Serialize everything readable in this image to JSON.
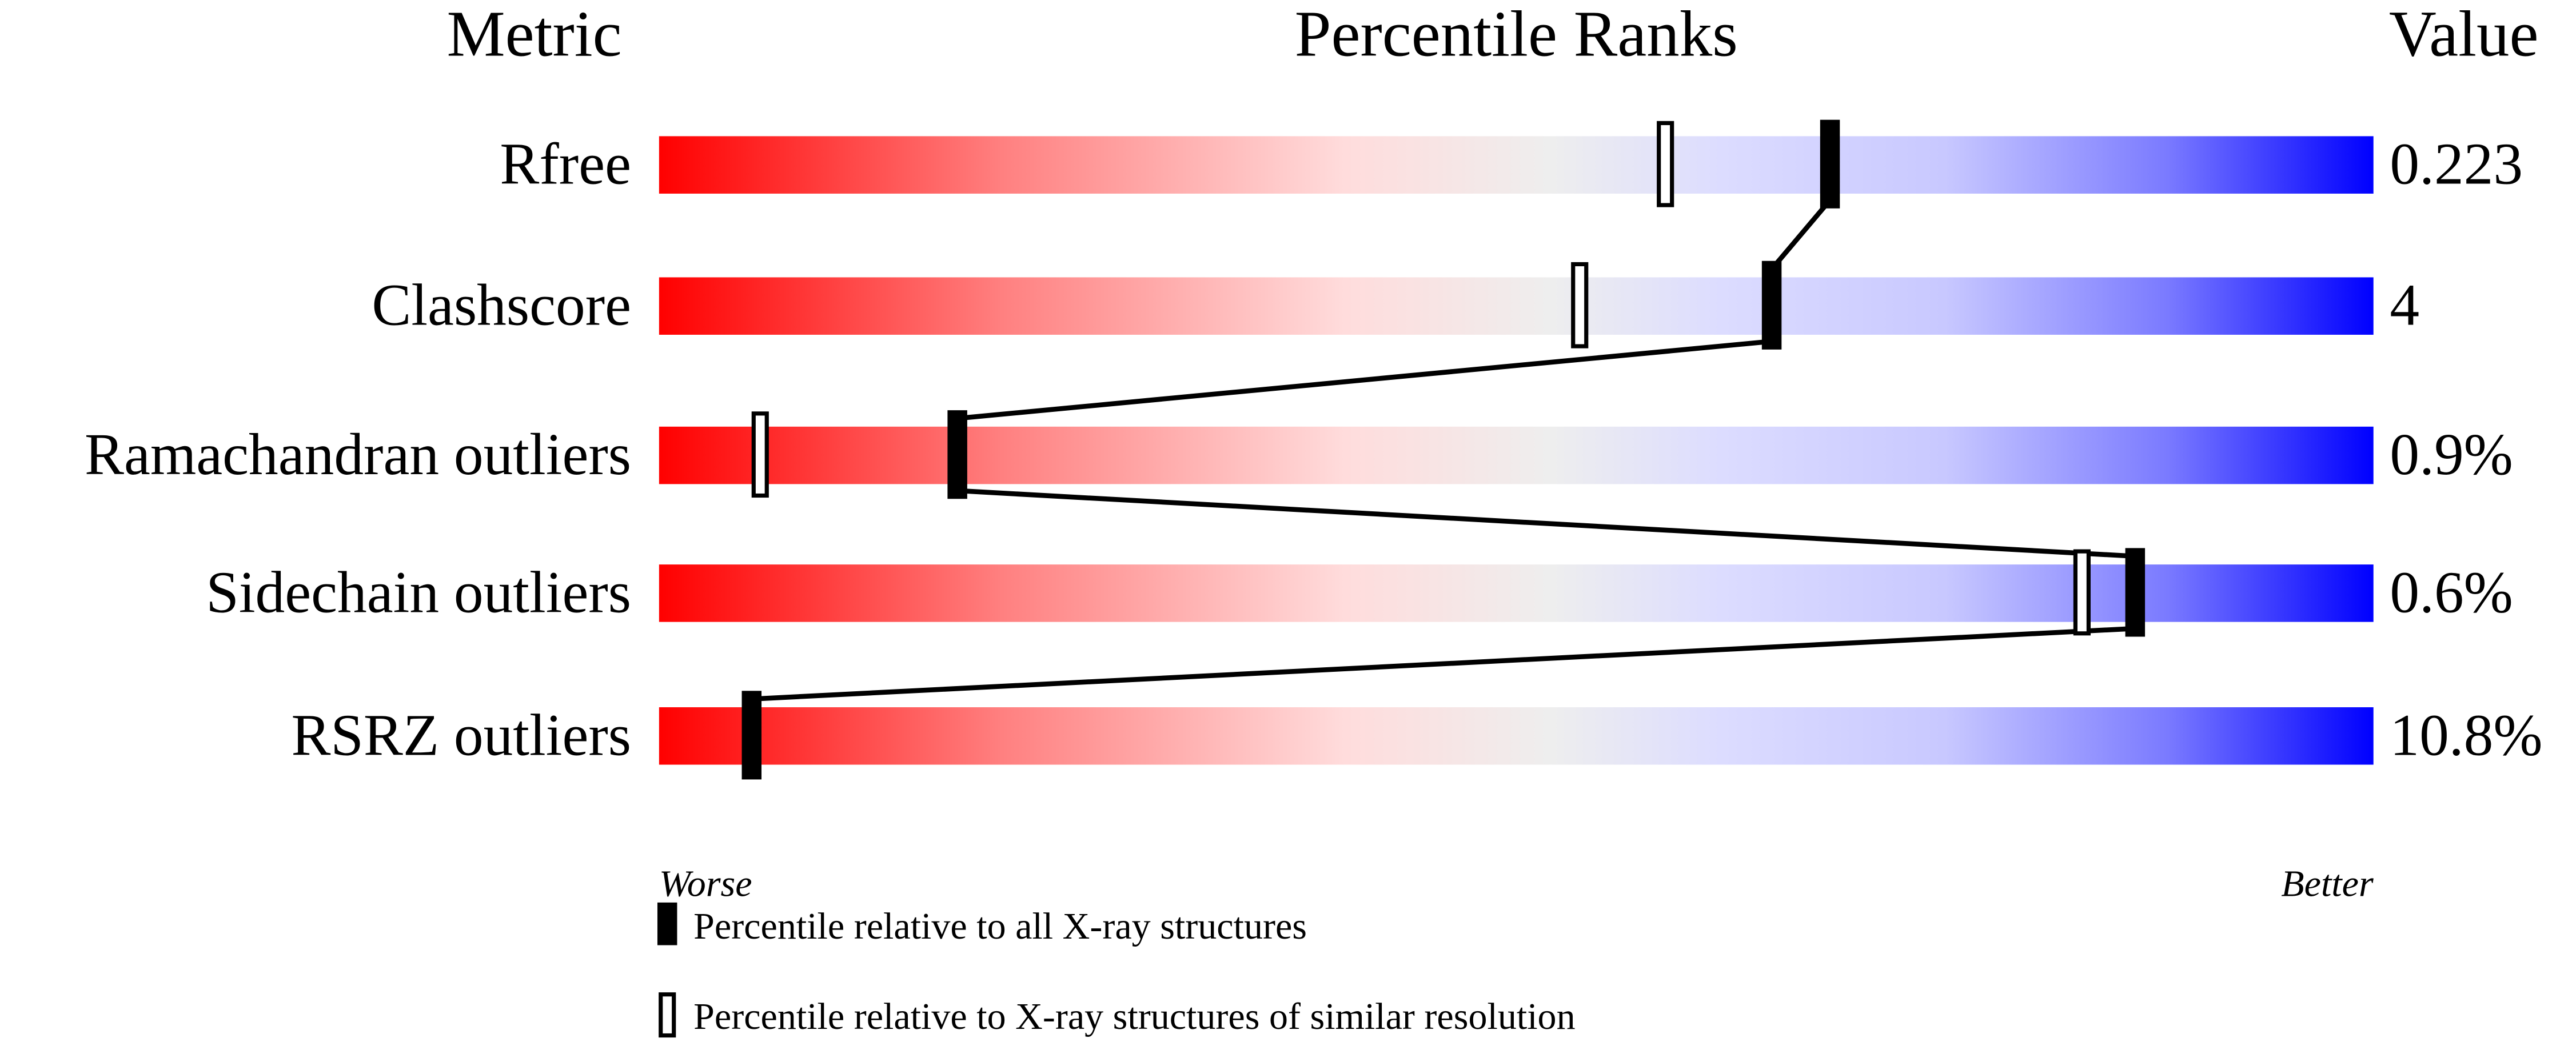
{
  "chart_data": {
    "type": "percentile-slider",
    "headers": {
      "metric": "Metric",
      "ranks": "Percentile Ranks",
      "value": "Value"
    },
    "xlim": [
      0,
      100
    ],
    "axis_labels": {
      "worse": "Worse",
      "better": "Better"
    },
    "rows": [
      {
        "metric": "Rfree",
        "value": "0.223",
        "percentile_all": 68.3,
        "percentile_similar": 58.7
      },
      {
        "metric": "Clashscore",
        "value": "4",
        "percentile_all": 64.9,
        "percentile_similar": 53.7
      },
      {
        "metric": "Ramachandran outliers",
        "value": "0.9%",
        "percentile_all": 17.4,
        "percentile_similar": 5.9
      },
      {
        "metric": "Sidechain outliers",
        "value": "0.6%",
        "percentile_all": 86.1,
        "percentile_similar": 83.0
      },
      {
        "metric": "RSRZ outliers",
        "value": "10.8%",
        "percentile_all": 5.4,
        "percentile_similar": null
      }
    ],
    "legend": {
      "all": "Percentile relative to all X-ray structures",
      "similar": "Percentile relative to X-ray structures of similar resolution"
    },
    "colors": {
      "worse": "#ff0000",
      "middle": "#eeeeee",
      "better": "#0000ff",
      "marker": "#000000"
    }
  }
}
